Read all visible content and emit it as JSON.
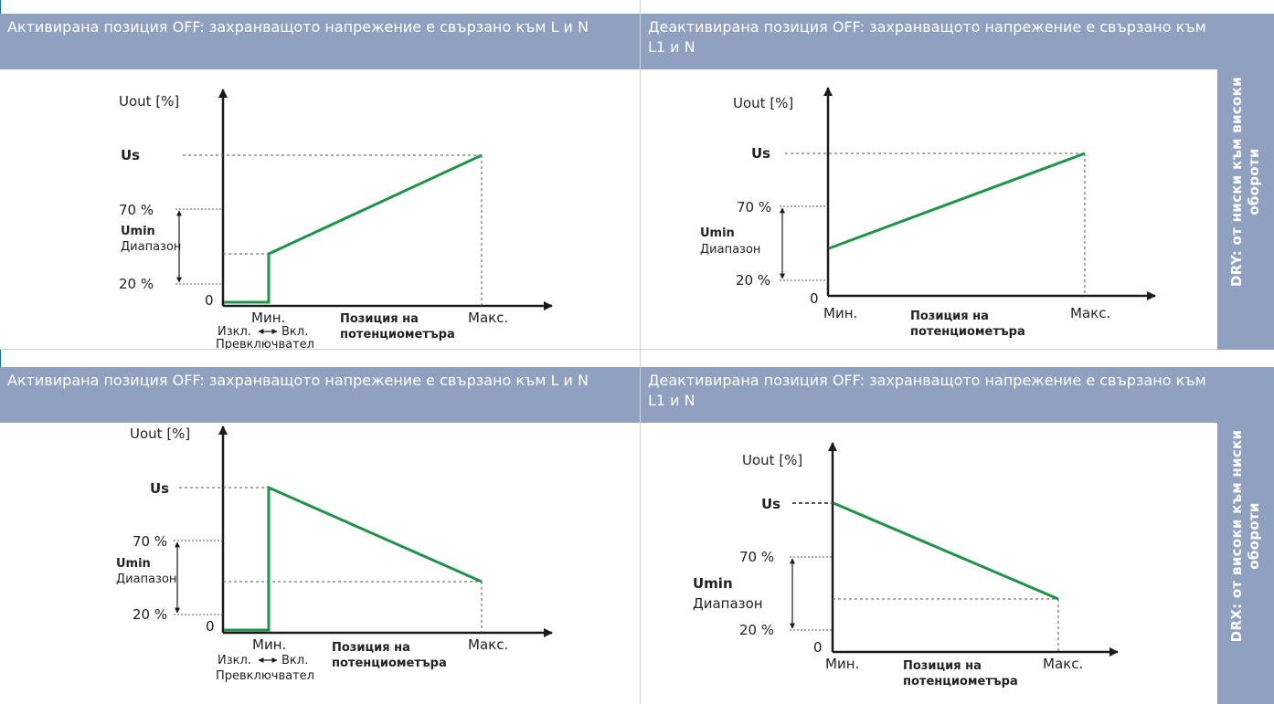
{
  "panels": [
    {
      "header": "Активирана позиция OFF: захранващото напрежение е свързано към L и N",
      "y_label": "Uout [%]",
      "us_label": "Us",
      "p70_label": "70 %",
      "p20_label": "20 %",
      "zero_label": "0",
      "umin_label": "Umin",
      "range_label": "Диапазон",
      "min_label": "Мин.",
      "max_label": "Макс.",
      "x_label_line1": "Позиция на",
      "x_label_line2": "потенциометъра",
      "switch_left": "Изкл.",
      "switch_right": "Вкл.",
      "switch_label": "Превключвател"
    },
    {
      "header": "Деактивирана позиция OFF: захранващото напрежение е свързано към L1 и N",
      "y_label": "Uout [%]",
      "us_label": "Us",
      "p70_label": "70 %",
      "p20_label": "20 %",
      "zero_label": "0",
      "umin_label": "Umin",
      "range_label": "Диапазон",
      "min_label": "Мин.",
      "max_label": "Макс.",
      "x_label_line1": "Позиция на",
      "x_label_line2": "потенциометъра"
    },
    {
      "header": "Активирана позиция OFF: захранващото напрежение е свързано към L и N",
      "y_label": "Uout [%]",
      "us_label": "Us",
      "p70_label": "70 %",
      "p20_label": "20 %",
      "zero_label": "0",
      "umin_label": "Umin",
      "range_label": "Диапазон",
      "min_label": "Мин.",
      "max_label": "Макс.",
      "x_label_line1": "Позиция на",
      "x_label_line2": "потенциометъра",
      "switch_left": "Изкл.",
      "switch_right": "Вкл.",
      "switch_label": "Превключвател"
    },
    {
      "header": "Деактивирана позиция OFF: захранващото напрежение е свързано към L1 и N",
      "y_label": "Uout [%]",
      "us_label": "Us",
      "p70_label": "70 %",
      "p20_label": "20 %",
      "zero_label": "0",
      "umin_label": "Umin",
      "range_label": "Диапазон",
      "min_label": "Мин.",
      "max_label": "Макс.",
      "x_label_line1": "Позиция на",
      "x_label_line2": "потенциометъра"
    }
  ],
  "side": {
    "top_line1": "DRY: от ниски към високи",
    "top_line2": "обороти",
    "bottom_line1": "DRX: от високи към ниски",
    "bottom_line2": "обороти"
  },
  "colors": {
    "header_bg": "#8fa0c0",
    "curve": "#1e9448",
    "axis": "#1a1a1a",
    "divider": "#c9d2e2"
  }
}
